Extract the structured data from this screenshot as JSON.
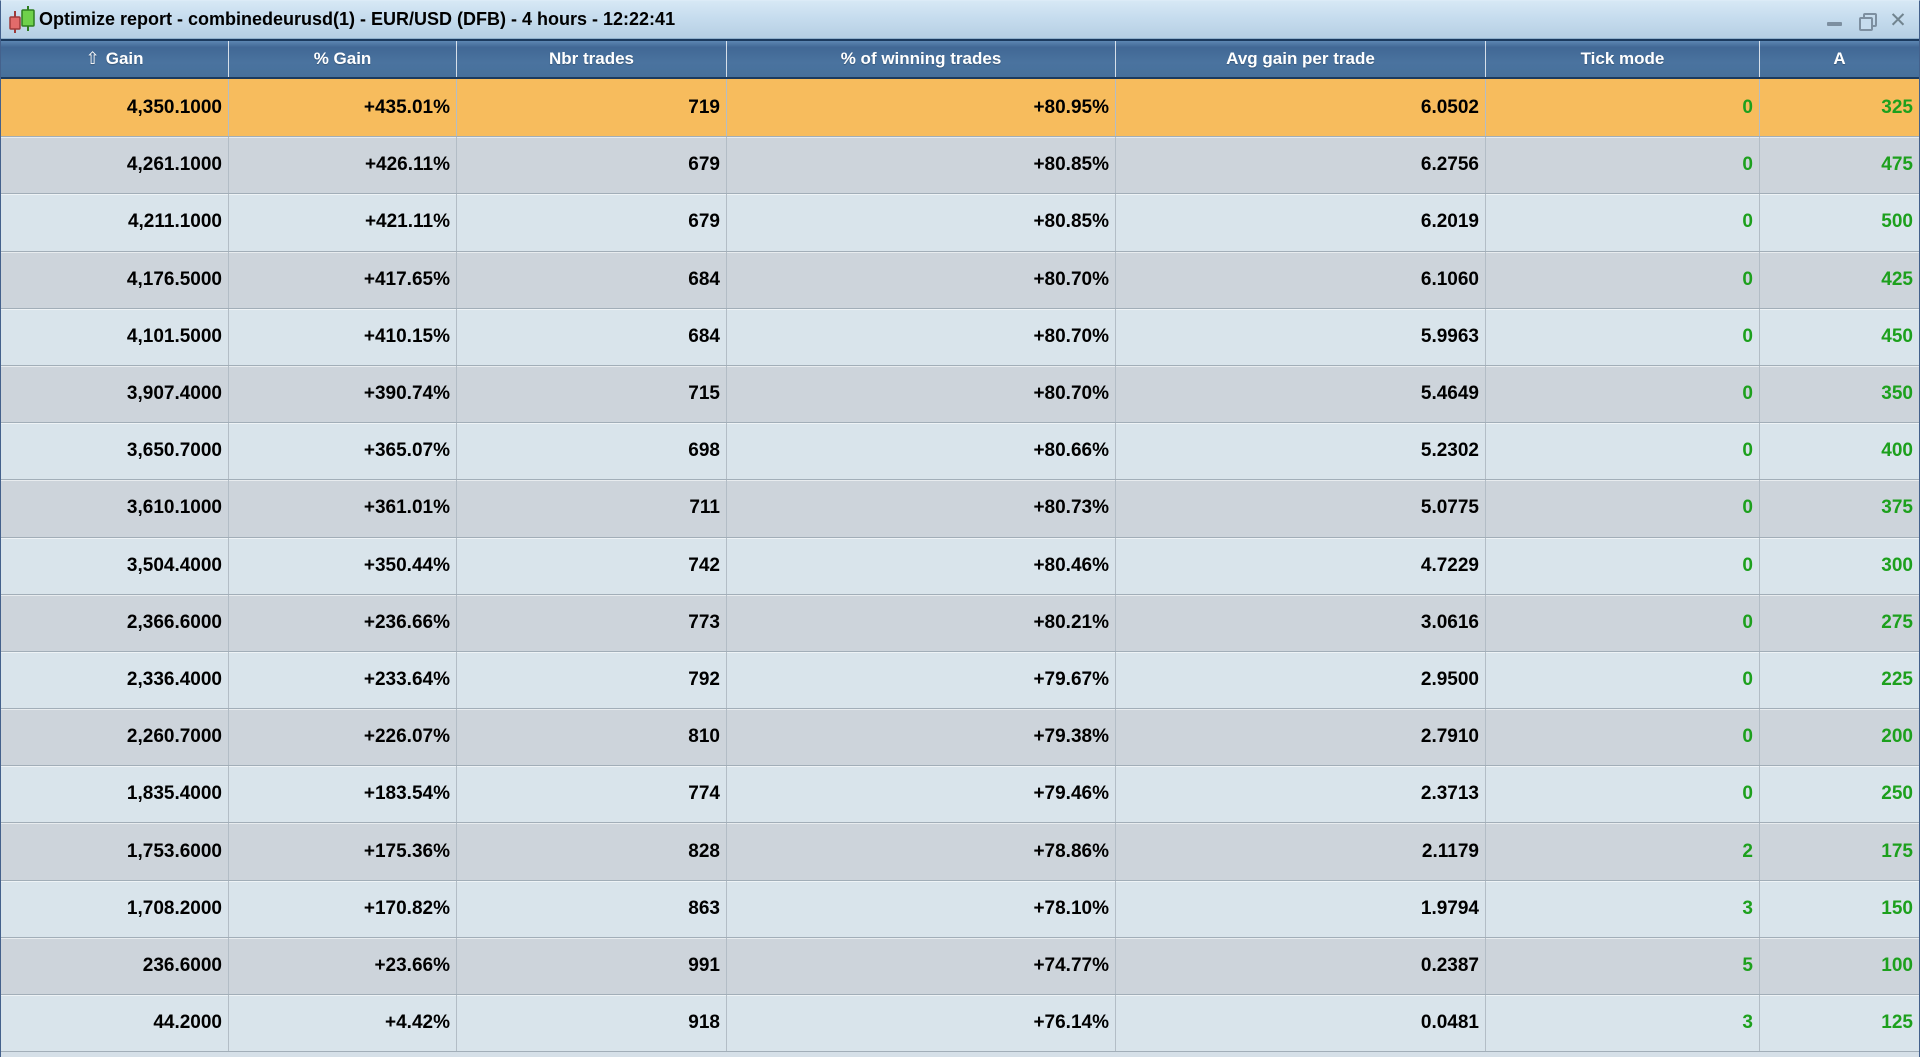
{
  "window": {
    "title": "Optimize report - combinedeurusd(1) - EUR/USD (DFB) - 4 hours - 12:22:41",
    "close_glyph": "✕"
  },
  "table": {
    "columns": [
      {
        "label": "Gain",
        "sort_indicator": "⇧"
      },
      {
        "label": "% Gain"
      },
      {
        "label": "Nbr trades"
      },
      {
        "label": "% of winning trades"
      },
      {
        "label": "Avg gain per trade"
      },
      {
        "label": "Tick mode"
      },
      {
        "label": "A"
      }
    ],
    "rows": [
      {
        "gain": "4,350.1000",
        "pct_gain": "+435.01%",
        "nbr_trades": "719",
        "pct_winning": "+80.95%",
        "avg_gain_per_trade": "6.0502",
        "tick_mode": "0",
        "a": "325",
        "highlighted": true
      },
      {
        "gain": "4,261.1000",
        "pct_gain": "+426.11%",
        "nbr_trades": "679",
        "pct_winning": "+80.85%",
        "avg_gain_per_trade": "6.2756",
        "tick_mode": "0",
        "a": "475",
        "highlighted": false
      },
      {
        "gain": "4,211.1000",
        "pct_gain": "+421.11%",
        "nbr_trades": "679",
        "pct_winning": "+80.85%",
        "avg_gain_per_trade": "6.2019",
        "tick_mode": "0",
        "a": "500",
        "highlighted": false
      },
      {
        "gain": "4,176.5000",
        "pct_gain": "+417.65%",
        "nbr_trades": "684",
        "pct_winning": "+80.70%",
        "avg_gain_per_trade": "6.1060",
        "tick_mode": "0",
        "a": "425",
        "highlighted": false
      },
      {
        "gain": "4,101.5000",
        "pct_gain": "+410.15%",
        "nbr_trades": "684",
        "pct_winning": "+80.70%",
        "avg_gain_per_trade": "5.9963",
        "tick_mode": "0",
        "a": "450",
        "highlighted": false
      },
      {
        "gain": "3,907.4000",
        "pct_gain": "+390.74%",
        "nbr_trades": "715",
        "pct_winning": "+80.70%",
        "avg_gain_per_trade": "5.4649",
        "tick_mode": "0",
        "a": "350",
        "highlighted": false
      },
      {
        "gain": "3,650.7000",
        "pct_gain": "+365.07%",
        "nbr_trades": "698",
        "pct_winning": "+80.66%",
        "avg_gain_per_trade": "5.2302",
        "tick_mode": "0",
        "a": "400",
        "highlighted": false
      },
      {
        "gain": "3,610.1000",
        "pct_gain": "+361.01%",
        "nbr_trades": "711",
        "pct_winning": "+80.73%",
        "avg_gain_per_trade": "5.0775",
        "tick_mode": "0",
        "a": "375",
        "highlighted": false
      },
      {
        "gain": "3,504.4000",
        "pct_gain": "+350.44%",
        "nbr_trades": "742",
        "pct_winning": "+80.46%",
        "avg_gain_per_trade": "4.7229",
        "tick_mode": "0",
        "a": "300",
        "highlighted": false
      },
      {
        "gain": "2,366.6000",
        "pct_gain": "+236.66%",
        "nbr_trades": "773",
        "pct_winning": "+80.21%",
        "avg_gain_per_trade": "3.0616",
        "tick_mode": "0",
        "a": "275",
        "highlighted": false
      },
      {
        "gain": "2,336.4000",
        "pct_gain": "+233.64%",
        "nbr_trades": "792",
        "pct_winning": "+79.67%",
        "avg_gain_per_trade": "2.9500",
        "tick_mode": "0",
        "a": "225",
        "highlighted": false
      },
      {
        "gain": "2,260.7000",
        "pct_gain": "+226.07%",
        "nbr_trades": "810",
        "pct_winning": "+79.38%",
        "avg_gain_per_trade": "2.7910",
        "tick_mode": "0",
        "a": "200",
        "highlighted": false
      },
      {
        "gain": "1,835.4000",
        "pct_gain": "+183.54%",
        "nbr_trades": "774",
        "pct_winning": "+79.46%",
        "avg_gain_per_trade": "2.3713",
        "tick_mode": "0",
        "a": "250",
        "highlighted": false
      },
      {
        "gain": "1,753.6000",
        "pct_gain": "+175.36%",
        "nbr_trades": "828",
        "pct_winning": "+78.86%",
        "avg_gain_per_trade": "2.1179",
        "tick_mode": "2",
        "a": "175",
        "highlighted": false
      },
      {
        "gain": "1,708.2000",
        "pct_gain": "+170.82%",
        "nbr_trades": "863",
        "pct_winning": "+78.10%",
        "avg_gain_per_trade": "1.9794",
        "tick_mode": "3",
        "a": "150",
        "highlighted": false
      },
      {
        "gain": "236.6000",
        "pct_gain": "+23.66%",
        "nbr_trades": "991",
        "pct_winning": "+74.77%",
        "avg_gain_per_trade": "0.2387",
        "tick_mode": "5",
        "a": "100",
        "highlighted": false
      },
      {
        "gain": "44.2000",
        "pct_gain": "+4.42%",
        "nbr_trades": "918",
        "pct_winning": "+76.14%",
        "avg_gain_per_trade": "0.0481",
        "tick_mode": "3",
        "a": "125",
        "highlighted": false
      }
    ]
  },
  "colors": {
    "highlight_row": "#f7bc5d",
    "row_dark": "#cdd4db",
    "row_light": "#d9e4eb",
    "header_blue": "#4a739f",
    "positive_green": "#1da01d",
    "titlebar_blue": "#c6dcee"
  }
}
